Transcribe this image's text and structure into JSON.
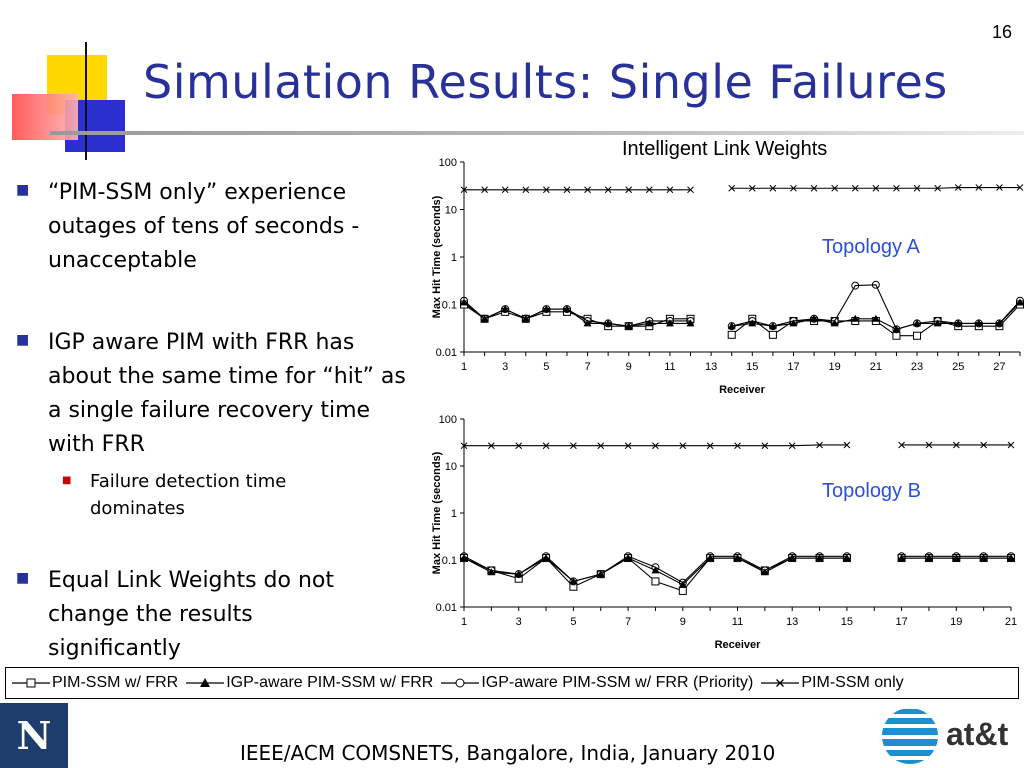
{
  "slide_number": "16",
  "title": "Simulation Results: Single Failures",
  "bullets": [
    {
      "text": "“PIM-SSM only” experience outages of tens of seconds - unacceptable"
    },
    {
      "text": "IGP aware PIM with FRR has about the same time for “hit” as a single failure recovery time with FRR"
    },
    {
      "text": "Equal Link Weights do not change the results significantly"
    }
  ],
  "sub_bullets": [
    {
      "text": "Failure detection time dominates"
    }
  ],
  "chart_heading": "Intelligent Link Weights",
  "footer": "IEEE/ACM COMSNETS, Bangalore, India, January 2010",
  "logo_right": "at&t",
  "logo_left": "N",
  "colors": {
    "title": "#28309a",
    "topology_label": "#2d4fd6",
    "bullet_mark": "#28309a",
    "sub_bullet_mark": "#cc0000"
  },
  "legend": [
    {
      "label": "PIM-SSM w/ FRR",
      "marker": "square-open"
    },
    {
      "label": "IGP-aware PIM-SSM w/ FRR",
      "marker": "triangle-filled"
    },
    {
      "label": "IGP-aware PIM-SSM w/ FRR (Priority)",
      "marker": "circle-open"
    },
    {
      "label": "PIM-SSM only",
      "marker": "x"
    }
  ],
  "chart_data": [
    {
      "type": "line",
      "annotation": "Topology A",
      "xlabel": "Receiver",
      "ylabel": "Max Hit Time (seconds)",
      "yscale": "log",
      "ylim": [
        0.01,
        100
      ],
      "yticks": [
        "100",
        "10",
        "1",
        "0.1",
        "0.01"
      ],
      "xlim": [
        1,
        28
      ],
      "xticks": [
        "1",
        "3",
        "5",
        "7",
        "9",
        "11",
        "13",
        "15",
        "17",
        "19",
        "21",
        "23",
        "25",
        "27"
      ],
      "grid": false,
      "x": [
        1,
        2,
        3,
        4,
        5,
        6,
        7,
        8,
        9,
        10,
        11,
        12,
        13,
        14,
        15,
        16,
        17,
        18,
        19,
        20,
        21,
        22,
        23,
        24,
        25,
        26,
        27,
        28
      ],
      "series": [
        {
          "name": "PIM-SSM w/ FRR",
          "marker": "square-open",
          "values": [
            0.1,
            0.05,
            0.07,
            0.05,
            0.07,
            0.07,
            0.05,
            0.035,
            0.035,
            0.035,
            0.05,
            0.05,
            null,
            0.023,
            0.05,
            0.023,
            0.045,
            0.045,
            0.045,
            0.045,
            0.045,
            0.022,
            0.022,
            0.045,
            0.035,
            0.035,
            0.035,
            0.1
          ]
        },
        {
          "name": "IGP-aware PIM-SSM w/ FRR",
          "marker": "triangle-filled",
          "values": [
            0.11,
            0.05,
            0.08,
            0.05,
            0.08,
            0.08,
            0.04,
            0.04,
            0.035,
            0.04,
            0.04,
            0.04,
            null,
            0.035,
            0.04,
            0.035,
            0.04,
            0.05,
            0.04,
            0.05,
            0.05,
            0.03,
            0.04,
            0.04,
            0.04,
            0.04,
            0.04,
            0.11
          ]
        },
        {
          "name": "IGP-aware PIM-SSM w/ FRR (Priority)",
          "marker": "circle-open",
          "values": [
            0.12,
            0.05,
            0.08,
            0.05,
            0.08,
            0.08,
            0.045,
            0.04,
            0.035,
            0.045,
            0.045,
            0.045,
            null,
            0.035,
            0.045,
            0.035,
            0.045,
            0.05,
            0.045,
            0.25,
            0.26,
            0.03,
            0.04,
            0.045,
            0.04,
            0.04,
            0.04,
            0.12
          ]
        },
        {
          "name": "PIM-SSM only",
          "marker": "x",
          "values": [
            26,
            26,
            26,
            26,
            26,
            26,
            26,
            26,
            26,
            26,
            26,
            26,
            null,
            28,
            28,
            28,
            28,
            28,
            28,
            28,
            28,
            28,
            28,
            28,
            29,
            29,
            29,
            29
          ]
        }
      ]
    },
    {
      "type": "line",
      "annotation": "Topology B",
      "xlabel": "Receiver",
      "ylabel": "Max Hit Time (seconds)",
      "yscale": "log",
      "ylim": [
        0.01,
        100
      ],
      "yticks": [
        "100",
        "10",
        "1",
        "0.1",
        "0.01"
      ],
      "xlim": [
        1,
        21
      ],
      "xticks": [
        "1",
        "3",
        "5",
        "7",
        "9",
        "11",
        "13",
        "15",
        "17",
        "19",
        "21"
      ],
      "grid": false,
      "x": [
        1,
        2,
        3,
        4,
        5,
        6,
        7,
        8,
        9,
        10,
        11,
        12,
        13,
        14,
        15,
        16,
        17,
        18,
        19,
        20,
        21
      ],
      "series": [
        {
          "name": "PIM-SSM w/ FRR",
          "marker": "square-open",
          "values": [
            0.11,
            0.06,
            0.04,
            0.11,
            0.027,
            0.05,
            0.11,
            0.035,
            0.022,
            0.11,
            0.11,
            0.06,
            0.11,
            0.11,
            0.11,
            null,
            0.11,
            0.11,
            0.11,
            0.11,
            0.11
          ]
        },
        {
          "name": "IGP-aware PIM-SSM w/ FRR",
          "marker": "triangle-filled",
          "values": [
            0.11,
            0.055,
            0.05,
            0.11,
            0.035,
            0.05,
            0.11,
            0.06,
            0.03,
            0.11,
            0.11,
            0.055,
            0.11,
            0.11,
            0.11,
            null,
            0.11,
            0.11,
            0.11,
            0.11,
            0.11
          ]
        },
        {
          "name": "IGP-aware PIM-SSM w/ FRR (Priority)",
          "marker": "circle-open",
          "values": [
            0.12,
            0.06,
            0.05,
            0.12,
            0.035,
            0.05,
            0.12,
            0.07,
            0.033,
            0.12,
            0.12,
            0.06,
            0.12,
            0.12,
            0.12,
            null,
            0.12,
            0.12,
            0.12,
            0.12,
            0.12
          ]
        },
        {
          "name": "PIM-SSM only",
          "marker": "x",
          "values": [
            27,
            27,
            27,
            27,
            27,
            27,
            27,
            27,
            27,
            27,
            27,
            27,
            27,
            28,
            28,
            null,
            28,
            28,
            28,
            28,
            28
          ]
        }
      ]
    }
  ]
}
